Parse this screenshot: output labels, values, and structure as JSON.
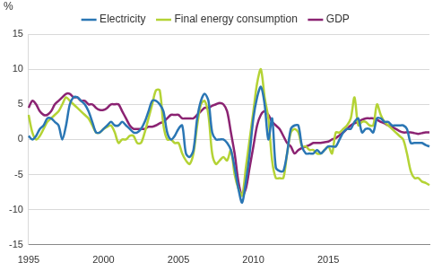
{
  "chart_data": {
    "type": "line",
    "ylabel": "%",
    "categories": [
      "1995",
      null,
      null,
      null,
      null,
      null,
      null,
      null,
      null,
      null,
      null,
      null,
      null,
      null,
      null,
      null,
      null,
      null,
      null,
      null,
      "2000",
      null,
      null,
      null,
      null,
      null,
      null,
      null,
      null,
      null,
      null,
      null,
      null,
      null,
      null,
      null,
      null,
      null,
      null,
      null,
      "2005",
      null,
      null,
      null,
      null,
      null,
      null,
      null,
      null,
      null,
      null,
      null,
      null,
      null,
      null,
      null,
      null,
      null,
      null,
      null,
      "2010",
      null,
      null,
      null,
      null,
      null,
      null,
      null,
      null,
      null,
      null,
      null,
      null,
      null,
      null,
      null,
      null,
      null,
      null,
      null,
      "2015",
      null,
      null,
      null,
      null,
      null,
      null,
      null,
      null,
      null,
      null,
      null,
      null,
      null,
      null,
      null,
      null,
      null,
      null,
      null,
      null,
      null,
      null,
      null,
      null,
      null,
      null,
      null
    ],
    "series": [
      {
        "name": "Electricity",
        "color": "#2a76b4",
        "values": [
          0.5,
          0,
          0.5,
          1.5,
          2,
          3,
          3,
          2.5,
          2,
          0,
          2,
          5,
          6,
          6,
          5.5,
          5,
          4,
          2.5,
          1,
          1,
          1.5,
          2,
          2.5,
          2,
          2,
          2.5,
          2,
          1.5,
          1,
          1,
          1.5,
          2.5,
          4,
          5.5,
          5.5,
          5,
          4,
          1,
          0,
          0.5,
          1.5,
          2,
          -2,
          -2.5,
          -1.5,
          3,
          5.5,
          6.5,
          5.5,
          1,
          0,
          0,
          0,
          -0.5,
          -1.5,
          -4,
          -7,
          -9,
          -6,
          -2,
          3,
          6,
          7.5,
          5,
          0,
          3,
          -4,
          -4.5,
          -4.5,
          -2,
          1.5,
          2,
          2,
          -1,
          -2,
          -2,
          -2,
          -1.5,
          -2,
          -1.5,
          -1,
          -1,
          -1,
          0,
          1,
          1.5,
          1.5,
          2.5,
          3,
          1,
          1.5,
          1.5,
          1,
          3,
          3,
          2.5,
          2.5,
          2,
          2,
          2,
          2,
          1.5,
          -0.5,
          -0.5,
          -0.5,
          -0.5,
          -0.8,
          -1
        ]
      },
      {
        "name": "Final energy consumption",
        "color": "#b4d335",
        "values": [
          3.5,
          1,
          0,
          0.5,
          1.5,
          2.5,
          3,
          3.5,
          4,
          5,
          6,
          5.5,
          5,
          4.5,
          4,
          3.5,
          3,
          2,
          1,
          1,
          1.5,
          1.8,
          2,
          1,
          -0.5,
          0,
          0,
          0.5,
          0.5,
          -0.5,
          -0.5,
          1,
          3,
          5,
          7,
          7,
          2,
          0,
          0,
          -0.5,
          -0.5,
          -2,
          -3,
          -3.5,
          -2,
          2,
          5,
          5.5,
          3.5,
          -2,
          -3.5,
          -3,
          -2.5,
          -3,
          -1.5,
          -5,
          -7,
          -8,
          -4,
          0,
          4,
          8,
          10,
          6,
          3,
          -3,
          -5.5,
          -5.5,
          -5.5,
          -2,
          1,
          1.5,
          1,
          -1,
          -1,
          -1.5,
          -1.5,
          -2,
          -2,
          -1.5,
          -1,
          -2,
          1,
          1,
          1.5,
          2,
          3,
          6,
          2,
          2.5,
          2.5,
          2,
          2,
          5,
          3.5,
          2.5,
          2,
          1.5,
          1,
          0.5,
          0,
          -2,
          -4.5,
          -5.5,
          -5.5,
          -6,
          -6.2,
          -6.5
        ]
      },
      {
        "name": "GDP",
        "color": "#8b2372",
        "values": [
          4.5,
          5.5,
          5,
          4,
          3.5,
          3.5,
          4,
          5,
          5.5,
          6,
          6.5,
          6.5,
          6,
          6,
          5.5,
          5.5,
          5,
          5,
          4.5,
          4.2,
          4.2,
          4.5,
          5,
          5,
          5,
          4,
          3,
          2,
          1.5,
          1.5,
          1.5,
          1.5,
          1.8,
          1.8,
          2,
          2.3,
          2.5,
          3,
          3.5,
          3.5,
          3.5,
          3,
          3,
          3,
          3,
          3.5,
          4,
          4.5,
          4.5,
          4.8,
          5,
          5.2,
          5,
          4,
          1,
          -2,
          -6,
          -8,
          -7,
          -4,
          -1,
          2,
          3.5,
          4,
          3.5,
          2.5,
          2,
          1.5,
          0.5,
          -0.5,
          -1,
          -2,
          -1.5,
          -1.2,
          -1,
          -0.8,
          -0.5,
          -0.5,
          -0.5,
          -0.4,
          -0.3,
          0,
          0.2,
          0.6,
          1,
          1.5,
          2,
          2.3,
          2.5,
          2.8,
          3,
          3,
          3,
          2.8,
          2.5,
          2.3,
          2,
          1.8,
          1.5,
          1.2,
          1,
          1,
          1,
          0.9,
          0.8,
          0.9,
          1,
          1
        ]
      }
    ],
    "ylim": [
      -15,
      15
    ],
    "yticks": [
      -15,
      -10,
      -5,
      0,
      5,
      10,
      15
    ],
    "grid": true,
    "legend": "top"
  }
}
